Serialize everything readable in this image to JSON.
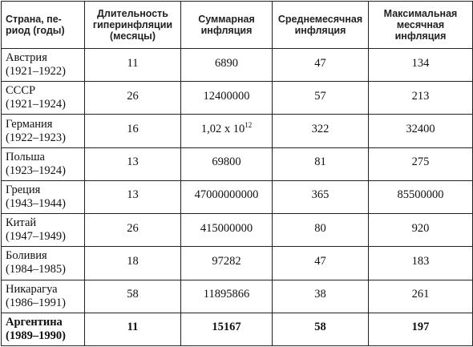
{
  "headers": [
    "Страна, пе-\nриод (годы)",
    "Длительность\nгиперинфляции\n(месяцы)",
    "Суммарная\nинфляция",
    "Среднемесячная\nинфляция",
    "Максимальная\nмесячная\nинфляция"
  ],
  "rows": [
    {
      "country": "Австрия",
      "period": "(1921–1922)",
      "duration": "11",
      "total": "6890",
      "total_sup": "",
      "avg": "47",
      "max": "134"
    },
    {
      "country": "СССР",
      "period": "(1921–1924)",
      "duration": "26",
      "total": "12400000",
      "total_sup": "",
      "avg": "57",
      "max": "213"
    },
    {
      "country": "Германия",
      "period": "(1922–1923)",
      "duration": "16",
      "total": "1,02 x 10",
      "total_sup": "12",
      "avg": "322",
      "max": "32400"
    },
    {
      "country": "Польша",
      "period": "(1923–1924)",
      "duration": "13",
      "total": "69800",
      "total_sup": "",
      "avg": "81",
      "max": "275"
    },
    {
      "country": "Греция",
      "period": "(1943–1944)",
      "duration": "13",
      "total": "47000000000",
      "total_sup": "",
      "avg": "365",
      "max": "85500000"
    },
    {
      "country": "Китай",
      "period": "(1947–1949)",
      "duration": "26",
      "total": "415000000",
      "total_sup": "",
      "avg": "80",
      "max": "920"
    },
    {
      "country": "Боливия",
      "period": "(1984–1985)",
      "duration": "18",
      "total": "97282",
      "total_sup": "",
      "avg": "47",
      "max": "183"
    },
    {
      "country": "Никарагуа",
      "period": "(1986–1991)",
      "duration": "58",
      "total": "11895866",
      "total_sup": "",
      "avg": "38",
      "max": "261"
    },
    {
      "country": "Аргентина",
      "period": "(1989–1990)",
      "duration": "11",
      "total": "15167",
      "total_sup": "",
      "avg": "58",
      "max": "197",
      "bold": true
    }
  ]
}
